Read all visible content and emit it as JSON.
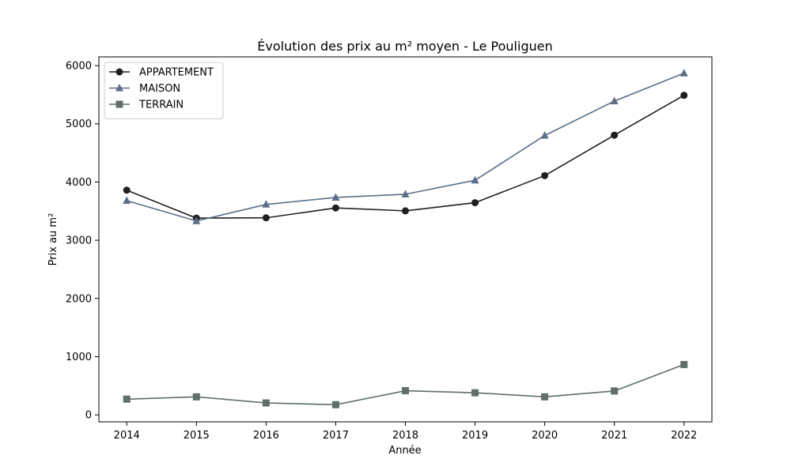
{
  "chart_data": {
    "type": "line",
    "title": "Évolution des prix au m² moyen - Le Pouliguen",
    "xlabel": "Année",
    "ylabel": "Prix au m²",
    "x": [
      2014,
      2015,
      2016,
      2017,
      2018,
      2019,
      2020,
      2021,
      2022
    ],
    "x_tick_labels": [
      "2014",
      "2015",
      "2016",
      "2017",
      "2018",
      "2019",
      "2020",
      "2021",
      "2022"
    ],
    "yticks": [
      0,
      1000,
      2000,
      3000,
      4000,
      5000,
      6000
    ],
    "y_tick_labels": [
      "0",
      "1000",
      "2000",
      "3000",
      "4000",
      "5000",
      "6000"
    ],
    "xlim": [
      2013.6,
      2022.4
    ],
    "ylim": [
      -120,
      6150
    ],
    "grid": false,
    "legend_position": "upper-left",
    "series": [
      {
        "name": "APPARTEMENT",
        "color": "#1f1f1f",
        "marker": "circle",
        "values": [
          3860,
          3380,
          3385,
          3555,
          3505,
          3645,
          4110,
          4805,
          5490
        ]
      },
      {
        "name": "MAISON",
        "color": "#5b6e89",
        "marker": "triangle",
        "values": [
          3680,
          3330,
          3615,
          3735,
          3790,
          4030,
          4800,
          5390,
          5870
        ]
      },
      {
        "name": "TERRAIN",
        "color": "#5f6e6a",
        "marker": "square",
        "values": [
          270,
          310,
          205,
          175,
          415,
          380,
          310,
          410,
          865
        ]
      }
    ]
  }
}
